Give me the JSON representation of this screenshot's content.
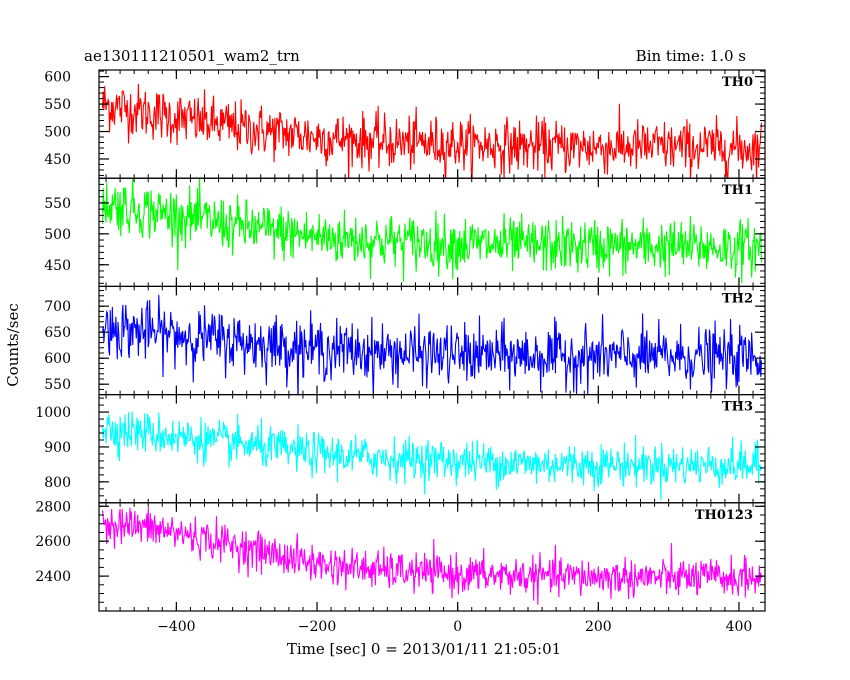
{
  "header": {
    "left_title": "ae130111210501_wam2_trn",
    "right_title": "Bin time: 1.0 s"
  },
  "chart_data": {
    "type": "line",
    "xlabel": "Time [sec] 0 = 2013/01/11 21:05:01",
    "ylabel": "Counts/sec",
    "xlim": [
      -510,
      437
    ],
    "x_ticks": [
      -400,
      -200,
      0,
      200,
      400
    ],
    "x_minor_step": 20,
    "bin_time": 1.0,
    "x_start": -505,
    "x_end": 432,
    "colors": {
      "TH0": "#ff0000",
      "TH1": "#00ff00",
      "TH2": "#0000ff",
      "TH3": "#00ffff",
      "TH0123": "#ff00ff"
    },
    "panels": [
      {
        "label": "TH0",
        "ylim": [
          415,
          612
        ],
        "y_ticks": [
          450,
          500,
          550,
          600
        ],
        "y_minor_step": 10,
        "trend": [
          [
            -505,
            550
          ],
          [
            -400,
            525
          ],
          [
            -300,
            505
          ],
          [
            -200,
            490
          ],
          [
            -100,
            480
          ],
          [
            0,
            477
          ],
          [
            100,
            473
          ],
          [
            200,
            472
          ],
          [
            300,
            472
          ],
          [
            432,
            470
          ]
        ],
        "noise_sd": 24
      },
      {
        "label": "TH1",
        "ylim": [
          415,
          590
        ],
        "y_ticks": [
          450,
          500,
          550
        ],
        "y_minor_step": 10,
        "trend": [
          [
            -505,
            550
          ],
          [
            -400,
            530
          ],
          [
            -300,
            510
          ],
          [
            -200,
            495
          ],
          [
            -100,
            488
          ],
          [
            0,
            484
          ],
          [
            100,
            481
          ],
          [
            200,
            480
          ],
          [
            300,
            479
          ],
          [
            432,
            478
          ]
        ],
        "noise_sd": 22
      },
      {
        "label": "TH2",
        "ylim": [
          530,
          738
        ],
        "y_ticks": [
          550,
          600,
          650,
          700
        ],
        "y_minor_step": 10,
        "trend": [
          [
            -505,
            660
          ],
          [
            -400,
            645
          ],
          [
            -300,
            630
          ],
          [
            -200,
            618
          ],
          [
            -100,
            610
          ],
          [
            0,
            607
          ],
          [
            100,
            604
          ],
          [
            200,
            603
          ],
          [
            300,
            603
          ],
          [
            432,
            602
          ]
        ],
        "noise_sd": 28
      },
      {
        "label": "TH3",
        "ylim": [
          740,
          1050
        ],
        "y_ticks": [
          800,
          900,
          1000
        ],
        "y_minor_step": 20,
        "trend": [
          [
            -505,
            955
          ],
          [
            -400,
            930
          ],
          [
            -300,
            905
          ],
          [
            -200,
            880
          ],
          [
            -100,
            868
          ],
          [
            0,
            860
          ],
          [
            100,
            852
          ],
          [
            200,
            850
          ],
          [
            300,
            848
          ],
          [
            432,
            847
          ]
        ],
        "noise_sd": 30
      },
      {
        "label": "TH0123",
        "ylim": [
          2200,
          2820
        ],
        "y_ticks": [
          2400,
          2600,
          2800
        ],
        "y_minor_step": 50,
        "trend": [
          [
            -505,
            2715
          ],
          [
            -400,
            2650
          ],
          [
            -300,
            2560
          ],
          [
            -200,
            2470
          ],
          [
            -100,
            2430
          ],
          [
            0,
            2410
          ],
          [
            100,
            2400
          ],
          [
            200,
            2395
          ],
          [
            300,
            2392
          ],
          [
            432,
            2390
          ]
        ],
        "noise_sd": 55
      }
    ]
  }
}
